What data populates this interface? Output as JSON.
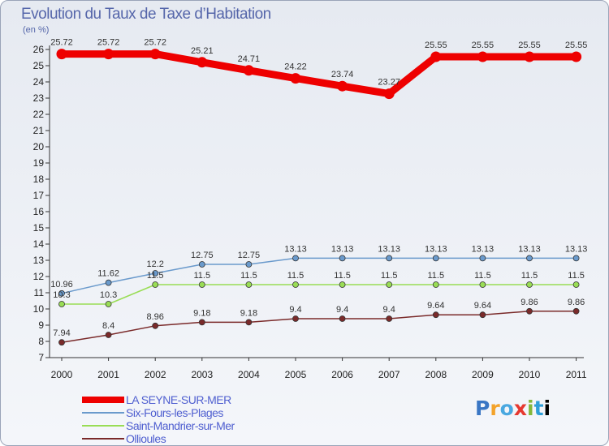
{
  "chart_data": {
    "type": "line",
    "title": "Evolution du Taux de Taxe d’Habitation",
    "ylabel": "(en %)",
    "xlabel": "",
    "ylim": [
      7,
      26
    ],
    "y_ticks": [
      7,
      8,
      9,
      10,
      11,
      12,
      13,
      14,
      15,
      16,
      17,
      18,
      19,
      20,
      21,
      22,
      23,
      24,
      25,
      26
    ],
    "categories": [
      "2000",
      "2001",
      "2002",
      "2003",
      "2004",
      "2005",
      "2006",
      "2007",
      "2008",
      "2009",
      "2010",
      "2011"
    ],
    "series": [
      {
        "name": "LA SEYNE-SUR-MER",
        "color": "#ee0000",
        "values": [
          25.72,
          25.72,
          25.72,
          25.21,
          24.71,
          24.22,
          23.74,
          23.27,
          25.55,
          25.55,
          25.55,
          25.55
        ],
        "labels": [
          "25.72",
          "25.72",
          "25.72",
          "25.21",
          "24.71",
          "24.22",
          "23.74",
          "23.27",
          "25.55",
          "25.55",
          "25.55",
          "25.55"
        ]
      },
      {
        "name": "Six-Fours-les-Plages",
        "color": "#6a9acc",
        "values": [
          10.96,
          11.62,
          12.2,
          12.75,
          12.75,
          13.13,
          13.13,
          13.13,
          13.13,
          13.13,
          13.13,
          13.13
        ],
        "labels": [
          "10.96",
          "11.62",
          "12.2",
          "12.75",
          "12.75",
          "13.13",
          "13.13",
          "13.13",
          "13.13",
          "13.13",
          "13.13",
          "13.13"
        ]
      },
      {
        "name": "Saint-Mandrier-sur-Mer",
        "color": "#99dd55",
        "values": [
          10.3,
          10.3,
          11.5,
          11.5,
          11.5,
          11.5,
          11.5,
          11.5,
          11.5,
          11.5,
          11.5,
          11.5
        ],
        "labels": [
          "10.3",
          "10.3",
          "11.5",
          "11.5",
          "11.5",
          "11.5",
          "11.5",
          "11.5",
          "11.5",
          "11.5",
          "11.5",
          "11.5"
        ]
      },
      {
        "name": "Ollioules",
        "color": "#7a2a2a",
        "values": [
          7.94,
          8.4,
          8.96,
          9.18,
          9.18,
          9.4,
          9.4,
          9.4,
          9.64,
          9.64,
          9.86,
          9.86
        ],
        "labels": [
          "7.94",
          "8.4",
          "8.96",
          "9.18",
          "9.18",
          "9.4",
          "9.4",
          "9.4",
          "9.64",
          "9.64",
          "9.86",
          "9.86"
        ]
      }
    ],
    "legend_position": "bottom-left"
  },
  "branding": {
    "logo_letters": [
      "P",
      "r",
      "o",
      "x",
      "i",
      "t",
      "i"
    ]
  }
}
